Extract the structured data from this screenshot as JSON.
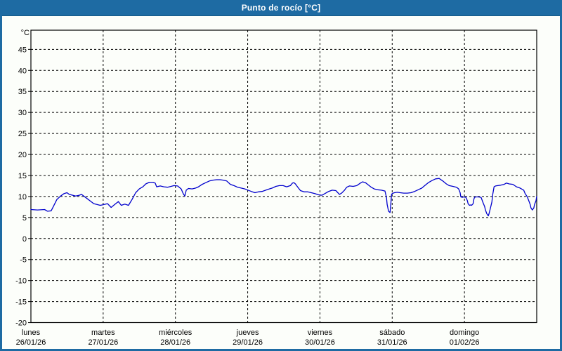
{
  "window": {
    "title": "Punto de rocío [°C]"
  },
  "colors": {
    "accent": "#1e6ba3",
    "line": "#0000cd",
    "grid": "#000000"
  },
  "chart_data": {
    "type": "line",
    "title": "Punto de rocío [°C]",
    "ylabel": "°C",
    "ylim": [
      -20,
      49.5
    ],
    "grid": true,
    "legend": "none",
    "y_ticks": [
      45,
      40,
      35,
      30,
      25,
      20,
      15,
      10,
      5,
      0,
      -5,
      -10,
      -15,
      -20
    ],
    "x_days": [
      {
        "name": "lunes",
        "date": "26/01/26"
      },
      {
        "name": "martes",
        "date": "27/01/26"
      },
      {
        "name": "miércoles",
        "date": "28/01/26"
      },
      {
        "name": "jueves",
        "date": "29/01/26"
      },
      {
        "name": "viernes",
        "date": "30/01/26"
      },
      {
        "name": "sábado",
        "date": "31/01/26"
      },
      {
        "name": "domingo",
        "date": "01/02/26"
      }
    ],
    "series": [
      {
        "name": "Punto de rocío",
        "color": "#0000cd",
        "x_unit": "days_from_start",
        "points": [
          [
            0.0,
            6.9
          ],
          [
            0.09,
            6.8
          ],
          [
            0.19,
            6.9
          ],
          [
            0.23,
            6.5
          ],
          [
            0.28,
            6.6
          ],
          [
            0.31,
            7.6
          ],
          [
            0.36,
            9.3
          ],
          [
            0.41,
            10.1
          ],
          [
            0.46,
            10.7
          ],
          [
            0.5,
            10.9
          ],
          [
            0.53,
            10.5
          ],
          [
            0.62,
            10.1
          ],
          [
            0.67,
            10.3
          ],
          [
            0.7,
            10.5
          ],
          [
            0.77,
            9.6
          ],
          [
            0.87,
            8.3
          ],
          [
            0.96,
            7.9
          ],
          [
            0.99,
            8.0
          ],
          [
            1.06,
            8.3
          ],
          [
            1.11,
            7.4
          ],
          [
            1.16,
            8.1
          ],
          [
            1.21,
            8.8
          ],
          [
            1.25,
            7.9
          ],
          [
            1.3,
            8.2
          ],
          [
            1.35,
            7.9
          ],
          [
            1.4,
            9.3
          ],
          [
            1.45,
            10.9
          ],
          [
            1.5,
            11.8
          ],
          [
            1.55,
            12.3
          ],
          [
            1.59,
            13.0
          ],
          [
            1.64,
            13.4
          ],
          [
            1.69,
            13.4
          ],
          [
            1.72,
            13.2
          ],
          [
            1.74,
            12.3
          ],
          [
            1.79,
            12.5
          ],
          [
            1.84,
            12.3
          ],
          [
            1.89,
            12.2
          ],
          [
            1.94,
            12.4
          ],
          [
            1.98,
            12.6
          ],
          [
            2.03,
            12.5
          ],
          [
            2.08,
            11.8
          ],
          [
            2.11,
            10.6
          ],
          [
            2.13,
            10.1
          ],
          [
            2.15,
            11.5
          ],
          [
            2.18,
            11.9
          ],
          [
            2.23,
            11.8
          ],
          [
            2.28,
            12.0
          ],
          [
            2.32,
            12.3
          ],
          [
            2.37,
            12.9
          ],
          [
            2.42,
            13.3
          ],
          [
            2.47,
            13.7
          ],
          [
            2.52,
            13.9
          ],
          [
            2.57,
            14.0
          ],
          [
            2.62,
            14.0
          ],
          [
            2.66,
            13.9
          ],
          [
            2.71,
            13.7
          ],
          [
            2.76,
            12.9
          ],
          [
            2.81,
            12.6
          ],
          [
            2.86,
            12.2
          ],
          [
            2.91,
            12.0
          ],
          [
            2.96,
            11.8
          ],
          [
            2.99,
            11.6
          ],
          [
            3.05,
            11.2
          ],
          [
            3.1,
            10.9
          ],
          [
            3.15,
            11.1
          ],
          [
            3.2,
            11.2
          ],
          [
            3.25,
            11.5
          ],
          [
            3.3,
            11.8
          ],
          [
            3.34,
            12.0
          ],
          [
            3.39,
            12.4
          ],
          [
            3.44,
            12.6
          ],
          [
            3.49,
            12.6
          ],
          [
            3.54,
            12.3
          ],
          [
            3.59,
            12.6
          ],
          [
            3.62,
            13.2
          ],
          [
            3.64,
            13.3
          ],
          [
            3.66,
            13.0
          ],
          [
            3.69,
            12.3
          ],
          [
            3.73,
            11.4
          ],
          [
            3.78,
            11.1
          ],
          [
            3.83,
            11.1
          ],
          [
            3.88,
            10.9
          ],
          [
            3.93,
            10.7
          ],
          [
            3.98,
            10.4
          ],
          [
            4.03,
            10.3
          ],
          [
            4.07,
            10.7
          ],
          [
            4.12,
            11.2
          ],
          [
            4.17,
            11.5
          ],
          [
            4.22,
            11.4
          ],
          [
            4.27,
            10.5
          ],
          [
            4.3,
            10.8
          ],
          [
            4.34,
            11.5
          ],
          [
            4.37,
            12.2
          ],
          [
            4.41,
            12.5
          ],
          [
            4.46,
            12.4
          ],
          [
            4.51,
            12.6
          ],
          [
            4.56,
            13.2
          ],
          [
            4.59,
            13.5
          ],
          [
            4.63,
            13.3
          ],
          [
            4.66,
            12.9
          ],
          [
            4.71,
            12.2
          ],
          [
            4.75,
            11.8
          ],
          [
            4.8,
            11.6
          ],
          [
            4.85,
            11.5
          ],
          [
            4.9,
            11.3
          ],
          [
            4.92,
            9.8
          ],
          [
            4.93,
            8.1
          ],
          [
            4.95,
            6.5
          ],
          [
            4.97,
            6.2
          ],
          [
            4.98,
            7.9
          ],
          [
            4.99,
            10.4
          ],
          [
            5.0,
            10.7
          ],
          [
            5.03,
            10.9
          ],
          [
            5.07,
            11.0
          ],
          [
            5.11,
            10.9
          ],
          [
            5.16,
            10.8
          ],
          [
            5.21,
            10.8
          ],
          [
            5.26,
            10.9
          ],
          [
            5.31,
            11.2
          ],
          [
            5.36,
            11.6
          ],
          [
            5.41,
            12.0
          ],
          [
            5.45,
            12.6
          ],
          [
            5.5,
            13.3
          ],
          [
            5.55,
            13.8
          ],
          [
            5.6,
            14.2
          ],
          [
            5.65,
            14.3
          ],
          [
            5.7,
            13.7
          ],
          [
            5.75,
            13.0
          ],
          [
            5.79,
            12.6
          ],
          [
            5.84,
            12.4
          ],
          [
            5.89,
            12.2
          ],
          [
            5.92,
            11.8
          ],
          [
            5.94,
            10.9
          ],
          [
            5.95,
            9.9
          ],
          [
            5.97,
            9.8
          ],
          [
            5.99,
            9.9
          ],
          [
            6.02,
            9.8
          ],
          [
            6.04,
            9.0
          ],
          [
            6.05,
            8.3
          ],
          [
            6.07,
            7.9
          ],
          [
            6.09,
            8.0
          ],
          [
            6.1,
            7.9
          ],
          [
            6.12,
            8.3
          ],
          [
            6.13,
            9.3
          ],
          [
            6.14,
            9.8
          ],
          [
            6.16,
            9.9
          ],
          [
            6.19,
            9.9
          ],
          [
            6.23,
            9.8
          ],
          [
            6.26,
            8.4
          ],
          [
            6.28,
            7.6
          ],
          [
            6.29,
            6.8
          ],
          [
            6.31,
            5.9
          ],
          [
            6.33,
            5.4
          ],
          [
            6.34,
            5.9
          ],
          [
            6.36,
            7.3
          ],
          [
            6.38,
            8.7
          ],
          [
            6.39,
            10.4
          ],
          [
            6.41,
            12.3
          ],
          [
            6.43,
            12.5
          ],
          [
            6.46,
            12.6
          ],
          [
            6.5,
            12.7
          ],
          [
            6.55,
            12.9
          ],
          [
            6.58,
            13.2
          ],
          [
            6.62,
            13.0
          ],
          [
            6.67,
            12.9
          ],
          [
            6.72,
            12.3
          ],
          [
            6.77,
            12.0
          ],
          [
            6.82,
            11.5
          ],
          [
            6.84,
            10.7
          ],
          [
            6.87,
            9.9
          ],
          [
            6.89,
            9.0
          ],
          [
            6.91,
            8.1
          ],
          [
            6.92,
            7.3
          ],
          [
            6.94,
            6.8
          ],
          [
            6.96,
            7.3
          ],
          [
            6.97,
            8.1
          ],
          [
            6.99,
            9.0
          ],
          [
            7.0,
            10.0
          ]
        ]
      }
    ]
  }
}
